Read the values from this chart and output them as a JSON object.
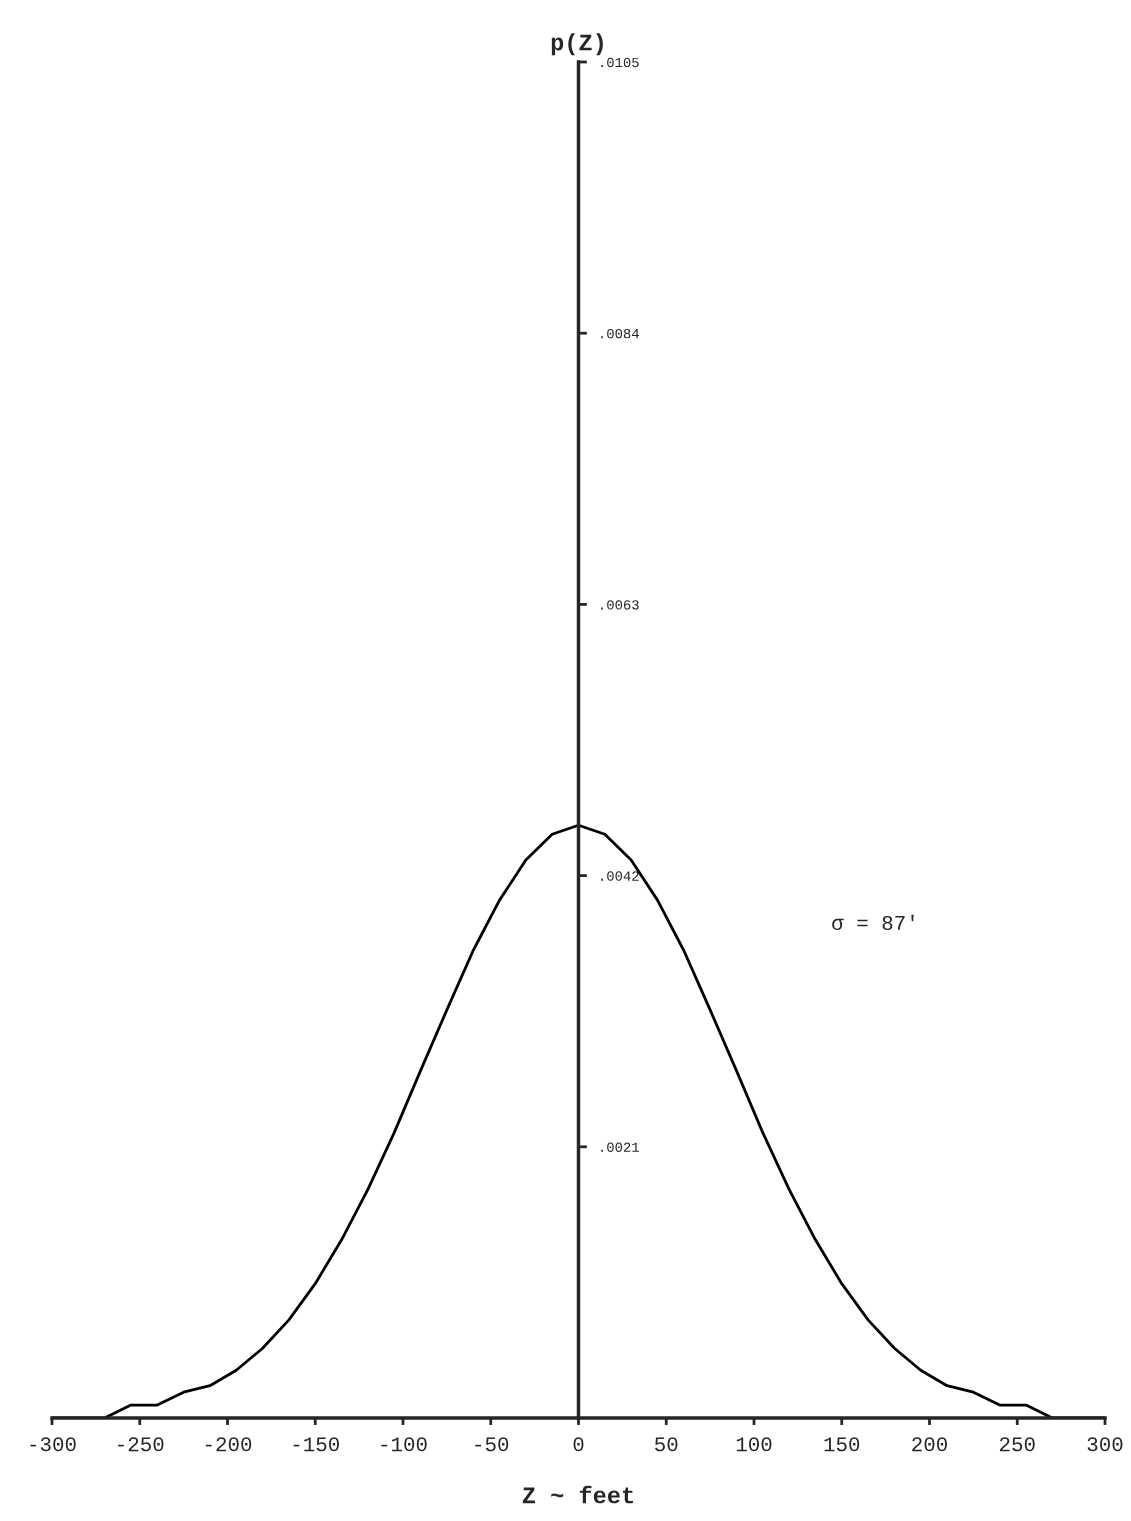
{
  "chart_data": {
    "type": "line",
    "xlabel": "Z ~ feet",
    "ylabel": "p(Z)",
    "x": [
      -300,
      -285,
      -270,
      -255,
      -240,
      -225,
      -210,
      -195,
      -180,
      -165,
      -150,
      -135,
      -120,
      -105,
      -90,
      -75,
      -60,
      -45,
      -30,
      -15,
      0,
      15,
      30,
      45,
      60,
      75,
      90,
      105,
      120,
      135,
      150,
      165,
      180,
      195,
      210,
      225,
      240,
      255,
      270,
      285,
      300
    ],
    "series": [
      {
        "color": "#000000",
        "values": [
          0.0,
          0.0,
          0.0,
          0.0001,
          0.0001,
          0.0002,
          0.00025,
          0.00037,
          0.00054,
          0.00076,
          0.00104,
          0.00138,
          0.00177,
          0.00221,
          0.00269,
          0.00316,
          0.00362,
          0.00401,
          0.00432,
          0.00452,
          0.00459,
          0.00452,
          0.00432,
          0.00401,
          0.00362,
          0.00316,
          0.00269,
          0.00221,
          0.00177,
          0.00138,
          0.00104,
          0.00076,
          0.00054,
          0.00037,
          0.00025,
          0.0002,
          0.0001,
          0.0001,
          0.0,
          0.0,
          0.0
        ]
      }
    ],
    "xlim": [
      -300,
      300
    ],
    "ylim": [
      0,
      0.0105
    ],
    "xticks": [
      -300,
      -250,
      -200,
      -150,
      -100,
      -50,
      0,
      50,
      100,
      150,
      200,
      250,
      300
    ],
    "yticks": [
      {
        "value": 0.0021,
        "label": ".0021"
      },
      {
        "value": 0.0042,
        "label": ".0042"
      },
      {
        "value": 0.0063,
        "label": ".0063"
      },
      {
        "value": 0.0084,
        "label": ".0084"
      },
      {
        "value": 0.0105,
        "label": ".0105"
      }
    ],
    "annotations": [
      "σ = 87'"
    ],
    "grid": false,
    "legend": false,
    "marker": "none",
    "line_style": "solid"
  }
}
